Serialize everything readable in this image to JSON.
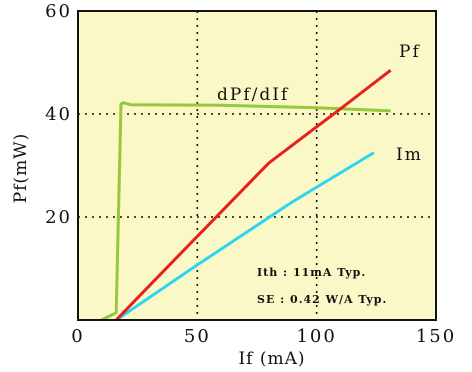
{
  "chart_data": {
    "type": "line",
    "xlabel": "If (mA)",
    "ylabel": "Pf(mW)",
    "xlim": [
      0,
      150
    ],
    "ylim": [
      0,
      60
    ],
    "x_ticks": [
      "0",
      "50",
      "100",
      "150"
    ],
    "y_ticks": [
      "20",
      "40",
      "60"
    ],
    "grid": "dotted at x=50,100 and y=20,40",
    "background": "#fbf8c7",
    "series": [
      {
        "name": "Pf",
        "color": "#e8201c",
        "points": [
          [
            16,
            0
          ],
          [
            40,
            11.5
          ],
          [
            80,
            30.5
          ],
          [
            110,
            41
          ],
          [
            131,
            48.5
          ]
        ]
      },
      {
        "name": "Im",
        "color": "#2fd4ef",
        "points": [
          [
            16,
            0
          ],
          [
            50,
            10.7
          ],
          [
            90,
            23
          ],
          [
            124,
            32.5
          ]
        ]
      },
      {
        "name": "dPf/dIf",
        "color": "#95c83a",
        "points": [
          [
            10,
            0
          ],
          [
            12,
            0.5
          ],
          [
            16,
            1.4
          ],
          [
            18,
            41.9
          ],
          [
            19,
            42.2
          ],
          [
            22,
            41.8
          ],
          [
            60,
            41.7
          ],
          [
            100,
            41.2
          ],
          [
            131,
            40.6
          ]
        ]
      }
    ],
    "annotations": [
      "Ith : 11mA Typ.",
      "SE : 0.42 W/A Typ."
    ]
  }
}
